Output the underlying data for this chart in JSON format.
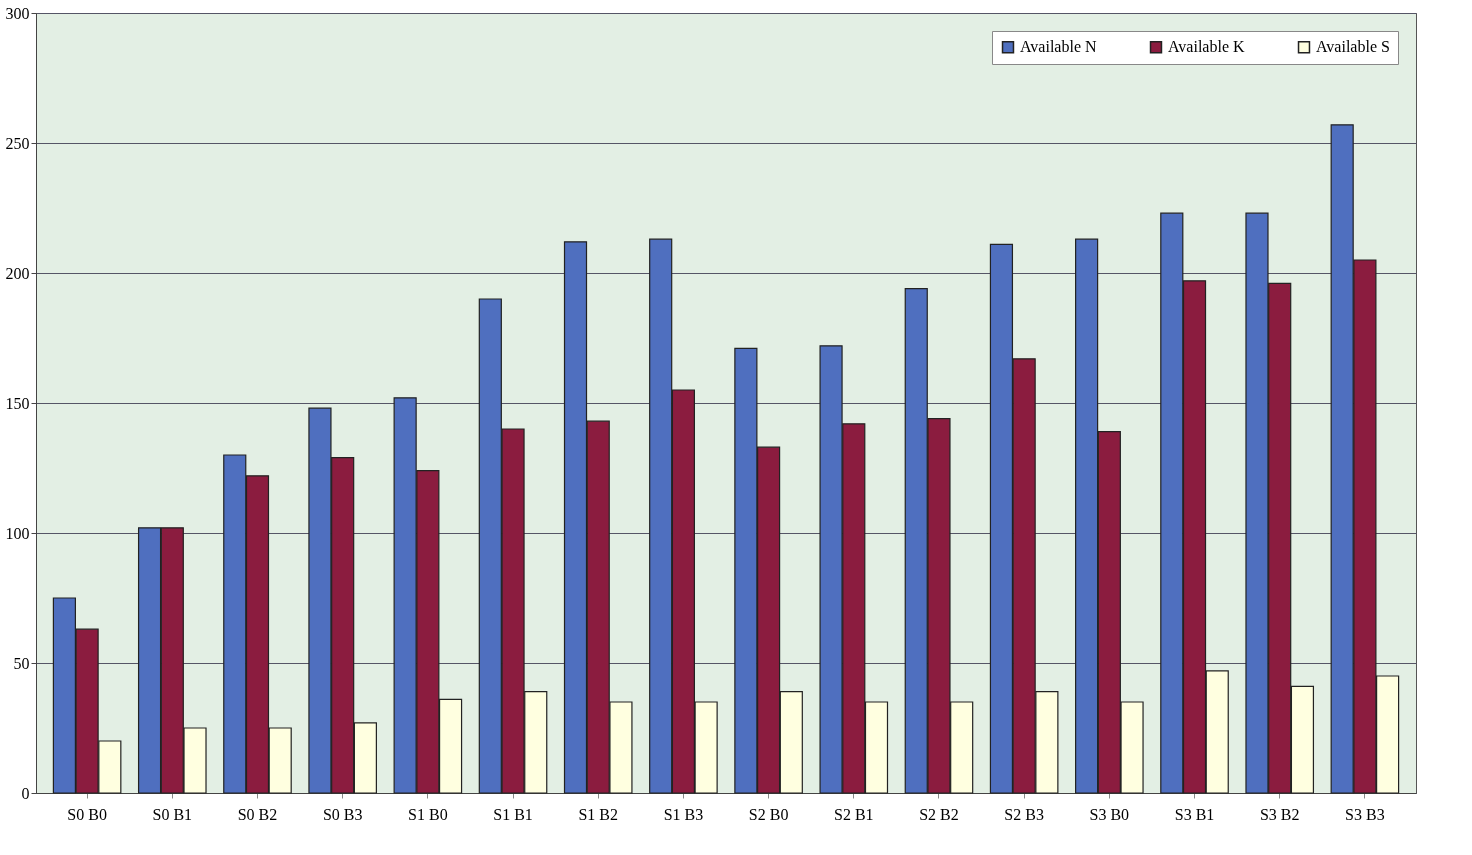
{
  "chart_data": {
    "type": "bar",
    "categories": [
      "S0 B0",
      "S0 B1",
      "S0 B2",
      "S0 B3",
      "S1 B0",
      "S1 B1",
      "S1 B2",
      "S1 B3",
      "S2 B0",
      "S2 B1",
      "S2 B2",
      "S2 B3",
      "S3 B0",
      "S3 B1",
      "S3 B2",
      "S3 B3"
    ],
    "series": [
      {
        "name": "Available N",
        "color": "#4f6fbf",
        "values": [
          75,
          102,
          130,
          148,
          152,
          190,
          212,
          213,
          171,
          172,
          194,
          211,
          213,
          223,
          223,
          257
        ]
      },
      {
        "name": "Available K",
        "color": "#8b1c3f",
        "values": [
          63,
          102,
          122,
          129,
          124,
          140,
          143,
          155,
          133,
          142,
          144,
          167,
          139,
          197,
          196,
          205
        ]
      },
      {
        "name": "Available S",
        "color": "#ffffe0",
        "values": [
          20,
          25,
          25,
          27,
          36,
          39,
          35,
          35,
          39,
          35,
          35,
          39,
          35,
          47,
          41,
          45
        ]
      }
    ],
    "ylim": [
      0,
      300
    ],
    "yticks": [
      0,
      50,
      100,
      150,
      200,
      250,
      300
    ],
    "grid": "y",
    "legend": "top right"
  }
}
